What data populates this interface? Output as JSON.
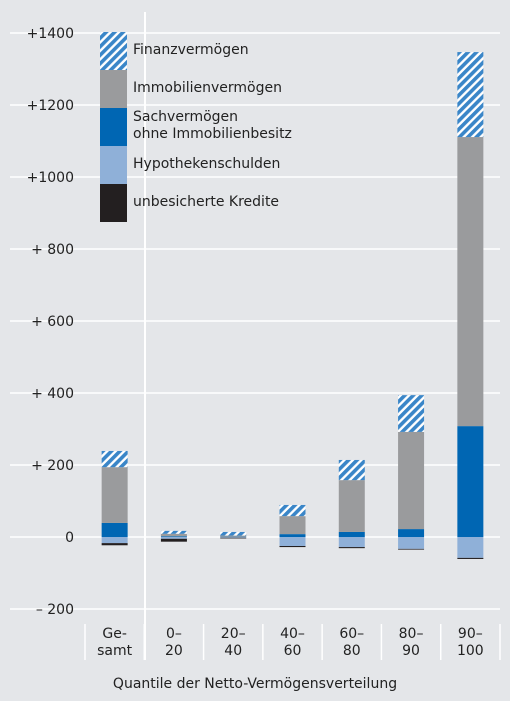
{
  "chart_data": {
    "type": "stacked_bar",
    "xlabel": "Quantile der Netto-Vermögensverteilung",
    "categories": [
      "Ge-\nsamt",
      "0–\n20",
      "20–\n40",
      "40–\n60",
      "60–\n80",
      "80–\n90",
      "90–\n100"
    ],
    "series": [
      {
        "name": "Finanzvermögen",
        "color": "#3a86c8",
        "pattern": "hatch",
        "values": [
          45,
          8,
          10,
          31,
          56,
          102,
          236
        ]
      },
      {
        "name": "Immobilienvermögen",
        "color": "#9a9b9d",
        "values": [
          155,
          7,
          3,
          50,
          144,
          270,
          803
        ]
      },
      {
        "name": "Sachvermögen\nohne Immobilienbesitz",
        "color": "#0066b3",
        "values": [
          39,
          2,
          1,
          8,
          14,
          22,
          308
        ]
      },
      {
        "name": "Hypothekenschulden",
        "color": "#8fb0d8",
        "values": [
          -17,
          -5,
          -2,
          -25,
          -28,
          -33,
          -58
        ]
      },
      {
        "name": "unbesicherte Kredite",
        "color": "#231f20",
        "values": [
          -6,
          -8,
          -2,
          -3,
          -3,
          -2,
          -3
        ]
      }
    ],
    "ylim": [
      -200,
      1400
    ],
    "yticks": [
      {
        "value": -200,
        "label": "– 200"
      },
      0,
      {
        "value": 200,
        "label": "+ 200"
      },
      {
        "value": 400,
        "label": "+ 400"
      },
      {
        "value": 600,
        "label": "+ 600"
      },
      {
        "value": 800,
        "label": "+ 800"
      },
      {
        "value": 1000,
        "label": "+1000"
      },
      {
        "value": 1200,
        "label": "+1200"
      },
      {
        "value": 1400,
        "label": "+1400"
      }
    ],
    "grid": true
  }
}
